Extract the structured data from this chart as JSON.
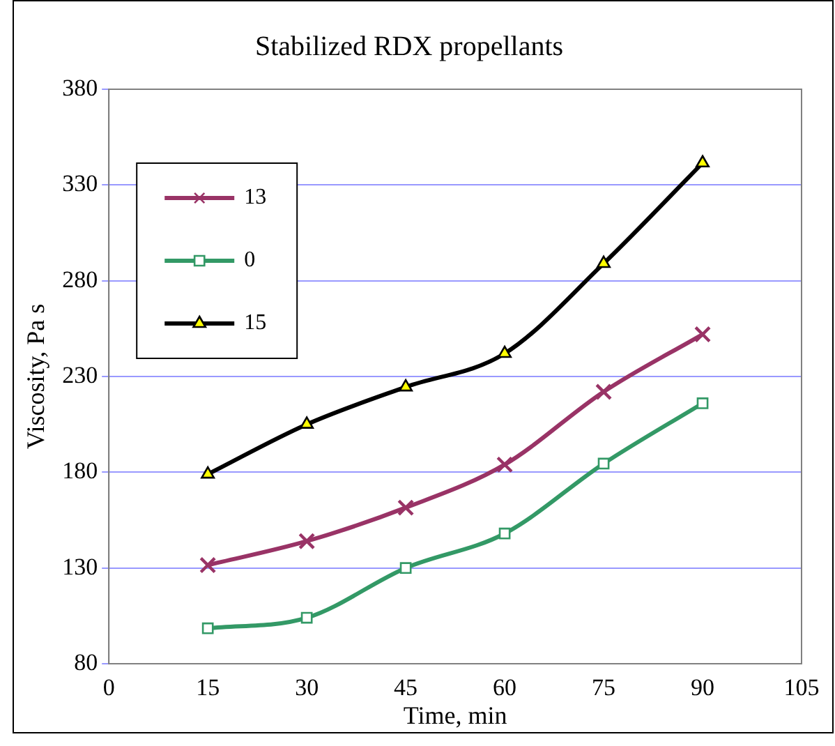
{
  "chart_data": {
    "type": "line",
    "title": "Stabilized RDX propellants",
    "xlabel": "Time, min",
    "ylabel": "Viscosity, Pa s",
    "x": [
      15,
      30,
      45,
      60,
      75,
      90
    ],
    "series": [
      {
        "name": "13",
        "color": "#993366",
        "marker": "cross",
        "values": [
          131.5,
          144,
          161.5,
          184,
          222,
          252
        ]
      },
      {
        "name": "0",
        "color": "#339966",
        "marker": "square",
        "values": [
          98.5,
          104,
          130,
          148,
          184.5,
          216
        ]
      },
      {
        "name": "15",
        "color": "#000000",
        "marker": "triangle",
        "values": [
          179,
          205,
          224.5,
          242,
          289,
          341.5
        ]
      }
    ],
    "xlim": [
      0,
      105
    ],
    "xticks": [
      0,
      15,
      30,
      45,
      60,
      75,
      90,
      105
    ],
    "ylim": [
      80,
      380
    ],
    "yticks": [
      80,
      130,
      180,
      230,
      280,
      330,
      380
    ],
    "grid": "y",
    "legend": "top left"
  }
}
